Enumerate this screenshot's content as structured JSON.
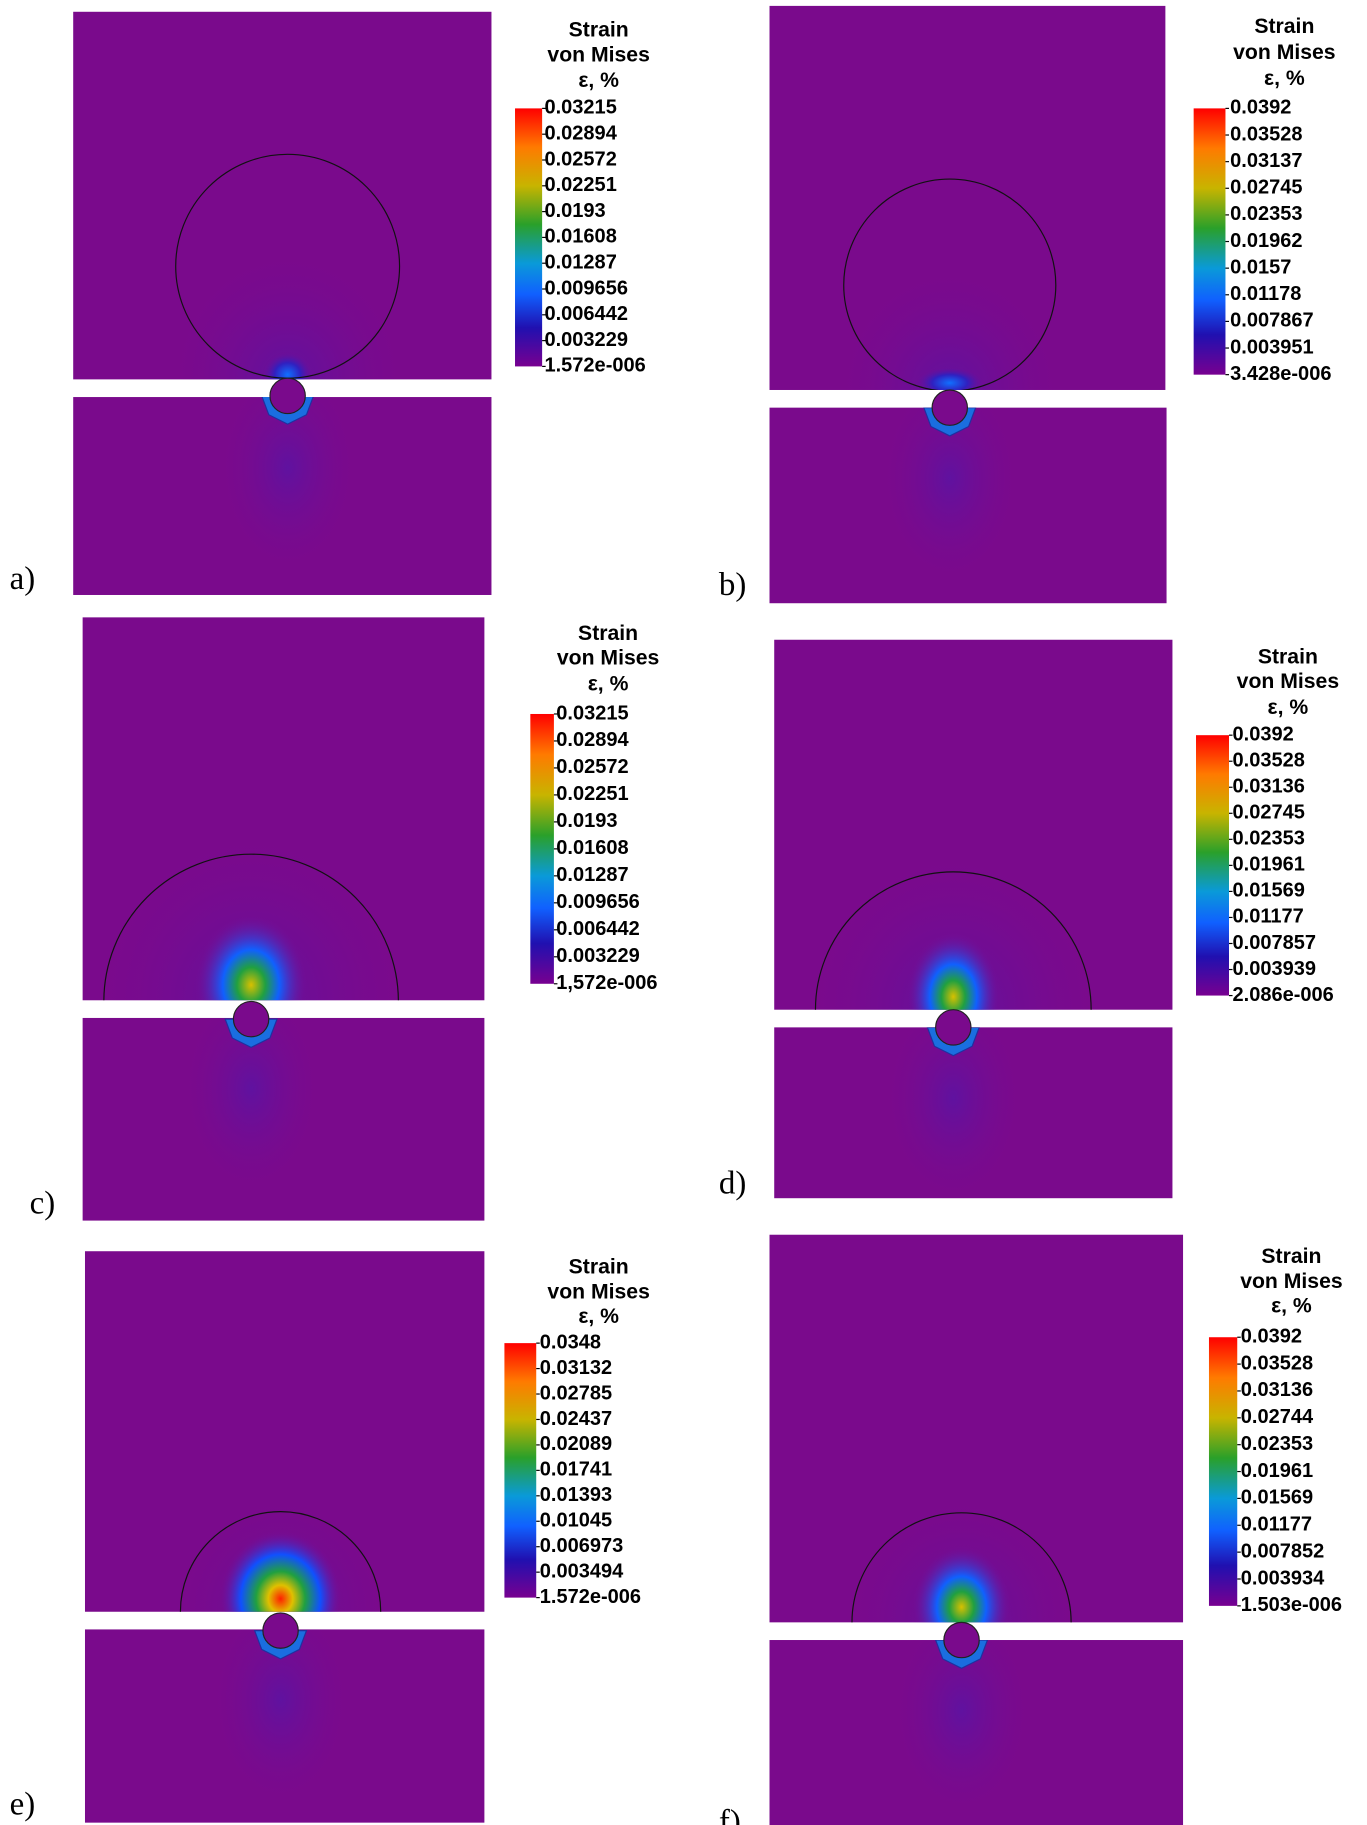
{
  "panels": [
    {
      "label": "a)",
      "legend": {
        "title": [
          "Strain",
          "von Mises",
          "ε, %"
        ],
        "ticks": [
          "0.03215",
          "0.02894",
          "0.02572",
          "0.02251",
          "0.0193",
          "0.01608",
          "0.01287",
          "0.009656",
          "0.006442",
          "0.003229",
          "1.572e-006"
        ]
      }
    },
    {
      "label": "b)",
      "legend": {
        "title": [
          "Strain",
          "von Mises",
          "ε, %"
        ],
        "ticks": [
          "0.0392",
          "0.03528",
          "0.03137",
          "0.02745",
          "0.02353",
          "0.01962",
          "0.0157",
          "0.01178",
          "0.007867",
          "0.003951",
          "3.428e-006"
        ]
      }
    },
    {
      "label": "c)",
      "legend": {
        "title": [
          "Strain",
          "von Mises",
          "ε, %"
        ],
        "ticks": [
          "0.03215",
          "0.02894",
          "0.02572",
          "0.02251",
          "0.0193",
          "0.01608",
          "0.01287",
          "0.009656",
          "0.006442",
          "0.003229",
          "1,572e-006"
        ]
      }
    },
    {
      "label": "d)",
      "legend": {
        "title": [
          "Strain",
          "von Mises",
          "ε, %"
        ],
        "ticks": [
          "0.0392",
          "0.03528",
          "0.03136",
          "0.02745",
          "0.02353",
          "0.01961",
          "0.01569",
          "0.01177",
          "0.007857",
          "0.003939",
          "2.086e-006"
        ]
      }
    },
    {
      "label": "e)",
      "legend": {
        "title": [
          "Strain",
          "von Mises",
          "ε, %"
        ],
        "ticks": [
          "0.0348",
          "0.03132",
          "0.02785",
          "0.02437",
          "0.02089",
          "0.01741",
          "0.01393",
          "0.01045",
          "0.006973",
          "0.003494",
          "1.572e-006"
        ]
      }
    },
    {
      "label": "f)",
      "legend": {
        "title": [
          "Strain",
          "von Mises",
          "ε, %"
        ],
        "ticks": [
          "0.0392",
          "0.03528",
          "0.03136",
          "0.02744",
          "0.02353",
          "0.01961",
          "0.01569",
          "0.01177",
          "0.007852",
          "0.003934",
          "1.503e-006"
        ]
      }
    }
  ]
}
